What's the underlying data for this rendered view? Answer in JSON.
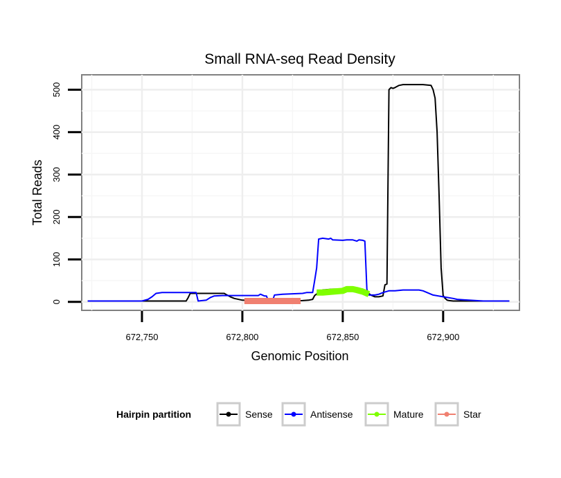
{
  "chart_data": {
    "type": "line",
    "title": "Small RNA-seq Read Density",
    "xlabel": "Genomic Position",
    "ylabel": "Total Reads",
    "xlim": [
      672720,
      672938
    ],
    "ylim": [
      -20,
      535
    ],
    "x_ticks": [
      672750,
      672800,
      672850,
      672900
    ],
    "x_tick_labels": [
      "672,750",
      "672,800",
      "672,850",
      "672,900"
    ],
    "y_ticks": [
      0,
      100,
      200,
      300,
      400,
      500
    ],
    "y_tick_labels": [
      "0",
      "100",
      "200",
      "300",
      "400",
      "500"
    ],
    "grid": true,
    "legend": {
      "title": "Hairpin partition",
      "position": "bottom",
      "entries": [
        "Sense",
        "Antisense",
        "Mature",
        "Star"
      ]
    },
    "series": [
      {
        "name": "Sense",
        "color": "#000000",
        "style": "line",
        "x": [
          672723,
          672730,
          672750,
          672772,
          672773,
          672774,
          672780,
          672790,
          672791,
          672792,
          672794,
          672796,
          672800,
          672810,
          672820,
          672830,
          672833,
          672835,
          672836,
          672838,
          672840,
          672845,
          672850,
          672855,
          672860,
          672864,
          672866,
          672868,
          672870,
          672871,
          672872,
          672873,
          672874,
          672875,
          672876,
          672878,
          672880,
          672885,
          672890,
          672894,
          672895,
          672896,
          672897,
          672898,
          672899,
          672900,
          672901,
          672902,
          672903,
          672905,
          672910,
          672920,
          672933
        ],
        "y": [
          2,
          2,
          2,
          2,
          10,
          20,
          20,
          20,
          20,
          17,
          12,
          8,
          4,
          3,
          2,
          3,
          4,
          6,
          15,
          22,
          28,
          30,
          30,
          30,
          30,
          16,
          12,
          12,
          14,
          40,
          42,
          500,
          505,
          503,
          505,
          510,
          512,
          512,
          512,
          510,
          500,
          480,
          400,
          250,
          80,
          15,
          8,
          4,
          3,
          2,
          2,
          2,
          2
        ]
      },
      {
        "name": "Antisense",
        "color": "#0000ff",
        "style": "line",
        "x": [
          672723,
          672740,
          672750,
          672753,
          672755,
          672757,
          672760,
          672770,
          672777,
          672778,
          672782,
          672784,
          672786,
          672790,
          672800,
          672808,
          672809,
          672810,
          672811,
          672812,
          672813,
          672815,
          672816,
          672820,
          672825,
          672830,
          672832,
          672835,
          672836,
          672837,
          672838,
          672840,
          672843,
          672844,
          672845,
          672850,
          672852,
          672855,
          672857,
          672858,
          672860,
          672861,
          672862,
          672863,
          672864,
          672866,
          672868,
          672870,
          672873,
          672876,
          672880,
          672884,
          672886,
          672888,
          672890,
          672895,
          672900,
          672905,
          672907,
          672910,
          672920,
          672933
        ],
        "y": [
          2,
          2,
          2,
          6,
          12,
          20,
          22,
          22,
          22,
          2,
          4,
          10,
          14,
          15,
          15,
          15,
          18,
          16,
          14,
          14,
          2,
          2,
          16,
          18,
          19,
          20,
          22,
          22,
          50,
          80,
          148,
          150,
          148,
          150,
          146,
          145,
          146,
          146,
          143,
          146,
          145,
          143,
          30,
          16,
          16,
          16,
          18,
          22,
          26,
          26,
          28,
          28,
          28,
          28,
          26,
          16,
          12,
          8,
          6,
          5,
          2,
          2
        ]
      },
      {
        "name": "Mature",
        "color": "#7fff00",
        "style": "thick",
        "x": [
          672837,
          672840,
          672845,
          672850,
          672852,
          672855,
          672857,
          672860,
          672863
        ],
        "y": [
          22,
          22,
          24,
          26,
          30,
          30,
          28,
          24,
          18
        ]
      },
      {
        "name": "Star",
        "color": "#f08070",
        "style": "thick",
        "x": [
          672801,
          672810,
          672820,
          672829
        ],
        "y": [
          2,
          2,
          2,
          2
        ]
      }
    ]
  }
}
